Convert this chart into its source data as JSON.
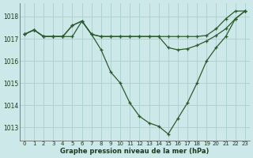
{
  "xlabel": "Graphe pression niveau de la mer (hPa)",
  "bg_color": "#cce8e8",
  "grid_color": "#aad0d0",
  "line_color": "#2d5a2d",
  "x_ticks": [
    0,
    1,
    2,
    3,
    4,
    5,
    6,
    7,
    8,
    9,
    10,
    11,
    12,
    13,
    14,
    15,
    16,
    17,
    18,
    19,
    20,
    21,
    22,
    23
  ],
  "ylim": [
    1012.4,
    1018.6
  ],
  "yticks": [
    1013,
    1014,
    1015,
    1016,
    1017,
    1018
  ],
  "line1": [
    1017.2,
    1017.4,
    1017.1,
    1017.1,
    1017.1,
    1017.6,
    1017.8,
    1017.2,
    1016.5,
    1015.5,
    1015.0,
    1014.1,
    1013.5,
    1013.2,
    1013.05,
    1012.7,
    1013.4,
    1014.1,
    1015.0,
    1016.0,
    1016.6,
    1017.1,
    1017.9,
    1018.25
  ],
  "line2": [
    1017.2,
    1017.4,
    1017.1,
    1017.1,
    1017.1,
    1017.6,
    1017.8,
    1017.2,
    1017.1,
    1017.1,
    1017.1,
    1017.1,
    1017.1,
    1017.1,
    1017.1,
    1017.1,
    1017.1,
    1017.1,
    1017.1,
    1017.15,
    1017.45,
    1017.9,
    1018.25,
    1018.25
  ],
  "line3": [
    1017.2,
    1017.4,
    1017.1,
    1017.1,
    1017.1,
    1017.1,
    1017.8,
    1017.2,
    1017.1,
    1017.1,
    1017.1,
    1017.1,
    1017.1,
    1017.1,
    1017.1,
    1016.6,
    1016.5,
    1016.55,
    1016.7,
    1016.9,
    1017.15,
    1017.45,
    1017.9,
    1018.25
  ]
}
